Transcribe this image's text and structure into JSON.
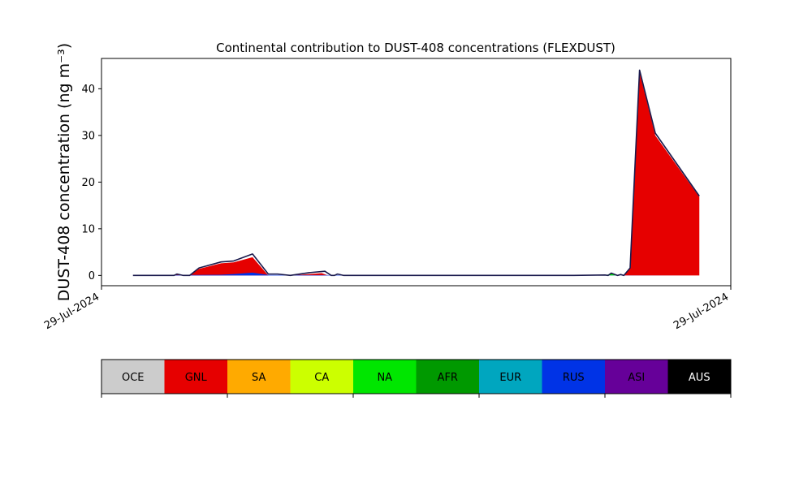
{
  "chart_data": {
    "type": "area",
    "title": "Continental contribution to DUST-408 concentrations (FLEXDUST)",
    "ylabel": "DUST-408 concentration (ng m⁻³)",
    "xlabel": "",
    "x_tick_labels": [
      "29-Jul-2024",
      "29-Jul-2024"
    ],
    "y_ticks": [
      0,
      10,
      20,
      30,
      40
    ],
    "ylim": [
      -2.2,
      46.5
    ],
    "grid": false,
    "regions": [
      {
        "code": "OCE",
        "color": "#cccccc"
      },
      {
        "code": "GNL",
        "color": "#e60000"
      },
      {
        "code": "SA",
        "color": "#ffaa00"
      },
      {
        "code": "CA",
        "color": "#ccff00"
      },
      {
        "code": "NA",
        "color": "#00e600"
      },
      {
        "code": "AFR",
        "color": "#009900"
      },
      {
        "code": "EUR",
        "color": "#00a6bf"
      },
      {
        "code": "RUS",
        "color": "#0033e6"
      },
      {
        "code": "ASI",
        "color": "#660099"
      },
      {
        "code": "AUS",
        "color": "#000000"
      }
    ],
    "x": [
      0,
      0.12,
      0.119,
      0.12,
      0.13,
      0.14,
      0.15,
      0.16,
      0.17,
      0.18,
      0.2,
      0.22,
      0.24,
      0.25,
      0.26,
      0.27,
      0.28,
      0.29,
      0.3,
      0.32,
      0.34,
      0.36,
      0.38,
      0.4,
      0.42,
      0.44,
      0.46,
      0.48,
      0.5,
      0.52,
      0.54,
      0.56,
      0.58,
      0.6,
      0.62,
      0.64,
      0.66,
      0.68,
      0.7,
      0.72,
      0.74,
      0.76,
      0.78,
      0.8,
      0.82,
      0.84,
      0.86,
      0.88,
      0.9,
      0.92,
      0.94,
      0.96,
      0.98,
      1.0
    ],
    "series": [
      {
        "code": "GNL",
        "x": [
          0.05,
          0.115,
          0.12,
          0.13,
          0.14,
          0.155,
          0.19,
          0.21,
          0.24,
          0.265,
          0.29,
          0.3,
          0.33,
          0.35,
          0.36,
          0.37,
          0.38,
          0.39,
          0.4,
          0.45,
          0.6,
          0.75,
          0.8,
          0.81,
          0.82,
          0.83,
          0.84,
          0.855,
          0.88,
          0.95
        ],
        "y": [
          0,
          0,
          0.2,
          0,
          0,
          1.4,
          2.6,
          2.8,
          3.9,
          0,
          0,
          0,
          0.3,
          0.5,
          0,
          0,
          0,
          0,
          0,
          0,
          0,
          0,
          0,
          0,
          0,
          0,
          1.5,
          43.5,
          30,
          16.8
        ]
      },
      {
        "code": "NA",
        "x": [
          0.05,
          0.8,
          0.81,
          0.82,
          0.83,
          0.95
        ],
        "y": [
          0,
          0,
          0.4,
          0,
          0,
          0
        ]
      },
      {
        "code": "RUS",
        "x": [
          0.05,
          0.19,
          0.21,
          0.24,
          0.265,
          0.95
        ],
        "y": [
          0,
          0.15,
          0.3,
          0.6,
          0.1,
          0
        ]
      }
    ],
    "total": {
      "x": [
        0.05,
        0.115,
        0.12,
        0.13,
        0.14,
        0.155,
        0.19,
        0.21,
        0.24,
        0.265,
        0.28,
        0.3,
        0.33,
        0.355,
        0.365,
        0.37,
        0.375,
        0.385,
        0.4,
        0.45,
        0.6,
        0.75,
        0.8,
        0.805,
        0.81,
        0.82,
        0.825,
        0.83,
        0.84,
        0.855,
        0.88,
        0.95
      ],
      "y": [
        0,
        0,
        0.3,
        0,
        0,
        1.6,
        2.9,
        3.1,
        4.6,
        0.3,
        0.3,
        0,
        0.6,
        0.9,
        0,
        0,
        0.3,
        0,
        0,
        0,
        0,
        0,
        0.1,
        0,
        0.5,
        0,
        0.2,
        0,
        1.6,
        44,
        30.5,
        17
      ]
    }
  }
}
